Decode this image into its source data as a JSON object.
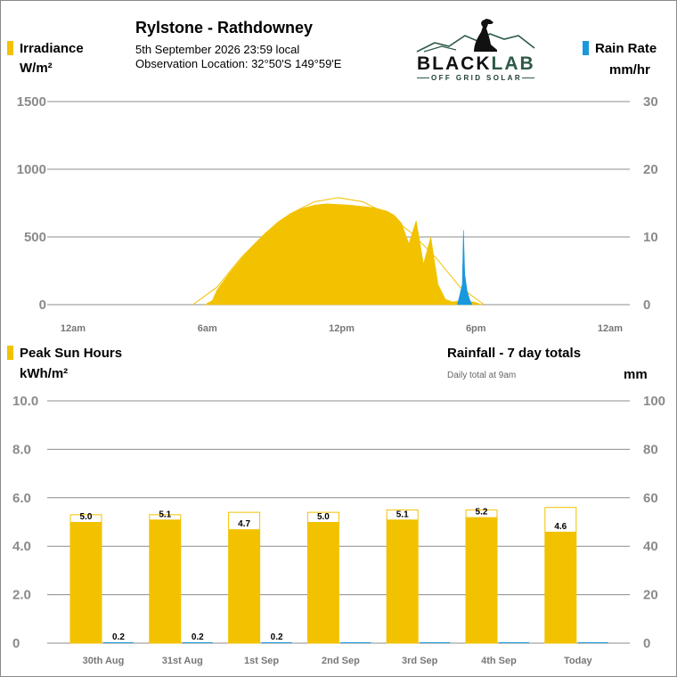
{
  "header": {
    "title": "Rylstone - Rathdowney",
    "datetime": "5th September 2026  23:59 local",
    "location": "Observation Location:  32°50'S 149°59'E"
  },
  "logo": {
    "part1": "BLACK",
    "part2": "LAB",
    "tagline": "OFF GRID SOLAR"
  },
  "colors": {
    "irradiance": "#F2C200",
    "rain": "#1A98DE",
    "grid": "#8c8c8c",
    "axis_text": "#8a8a8a",
    "logo_green": "#2d5a45"
  },
  "top_chart": {
    "left_title": "Irradiance",
    "left_unit": "W/m²",
    "right_title": "Rain Rate",
    "right_unit": "mm/hr",
    "left_ticks": [
      "1500",
      "1000",
      "500",
      "0"
    ],
    "right_ticks": [
      "30",
      "20",
      "10",
      "0"
    ],
    "x_ticks": [
      "12am",
      "6am",
      "12pm",
      "6pm",
      "12am"
    ]
  },
  "bottom_chart": {
    "left_title": "Peak Sun Hours",
    "left_unit": "kWh/m²",
    "right_title": "Rainfall - 7 day totals",
    "right_note": "Daily total at 9am",
    "right_unit": "mm",
    "left_ticks": [
      "10.0",
      "8.0",
      "6.0",
      "4.0",
      "2.0",
      "0"
    ],
    "right_ticks": [
      "100",
      "80",
      "60",
      "40",
      "20",
      "0"
    ]
  },
  "chart_data": [
    {
      "type": "area",
      "series": [
        {
          "name": "Irradiance",
          "unit": "W/m²",
          "axis": "left",
          "x_hours": [
            6.5,
            6.8,
            7.0,
            7.5,
            8.0,
            8.5,
            9.0,
            9.5,
            10.0,
            10.5,
            11.0,
            11.5,
            12.0,
            12.5,
            13.0,
            13.5,
            14.0,
            14.3,
            14.6,
            14.9,
            15.2,
            15.5,
            15.8,
            16.1,
            16.4,
            16.7,
            17.0,
            17.3,
            17.6,
            17.9
          ],
          "values": [
            0,
            30,
            110,
            230,
            340,
            440,
            530,
            610,
            670,
            710,
            735,
            745,
            740,
            735,
            725,
            715,
            690,
            660,
            600,
            450,
            620,
            300,
            500,
            150,
            40,
            20,
            30,
            25,
            20,
            0
          ]
        },
        {
          "name": "Clear-sky irradiance",
          "unit": "W/m²",
          "axis": "left",
          "x_hours": [
            6.0,
            7.0,
            8.0,
            9.0,
            10.0,
            11.0,
            12.0,
            13.0,
            14.0,
            15.0,
            16.0,
            17.0,
            18.0
          ],
          "values": [
            0,
            130,
            350,
            530,
            670,
            760,
            790,
            760,
            670,
            530,
            350,
            130,
            0
          ]
        },
        {
          "name": "Rain Rate",
          "unit": "mm/hr",
          "axis": "right",
          "x_hours": [
            16.9,
            17.0,
            17.1,
            17.15,
            17.2,
            17.3,
            17.4,
            17.5
          ],
          "values": [
            0,
            1.5,
            3.0,
            11.0,
            4.5,
            2.0,
            0.8,
            0
          ]
        }
      ],
      "x_range_hours": [
        0,
        24
      ],
      "ylim_left": [
        0,
        1500
      ],
      "ylim_right": [
        0,
        30
      ],
      "grid": true
    },
    {
      "type": "bar",
      "categories": [
        "30th Aug",
        "31st Aug",
        "1st Sep",
        "2nd Sep",
        "3rd Sep",
        "4th Sep",
        "Today"
      ],
      "series": [
        {
          "name": "Peak Sun Hours",
          "unit": "kWh/m²",
          "axis": "left",
          "values": [
            5.0,
            5.1,
            4.7,
            5.0,
            5.1,
            5.2,
            4.6
          ],
          "labels": [
            "5.0",
            "5.1",
            "4.7",
            "5.0",
            "5.1",
            "5.2",
            "4.6"
          ]
        },
        {
          "name": "Clear-sky potential",
          "unit": "kWh/m²",
          "axis": "left",
          "values": [
            5.3,
            5.3,
            5.4,
            5.4,
            5.5,
            5.5,
            5.6
          ]
        },
        {
          "name": "Rainfall",
          "unit": "mm",
          "axis": "right",
          "values": [
            0.2,
            0.2,
            0.2,
            0.0,
            0.0,
            0.0,
            0.0
          ],
          "labels": [
            "0.2",
            "0.2",
            "0.2",
            "",
            "",
            "",
            ""
          ]
        }
      ],
      "ylim_left": [
        0,
        10
      ],
      "ylim_right": [
        0,
        100
      ],
      "grid": true
    }
  ]
}
